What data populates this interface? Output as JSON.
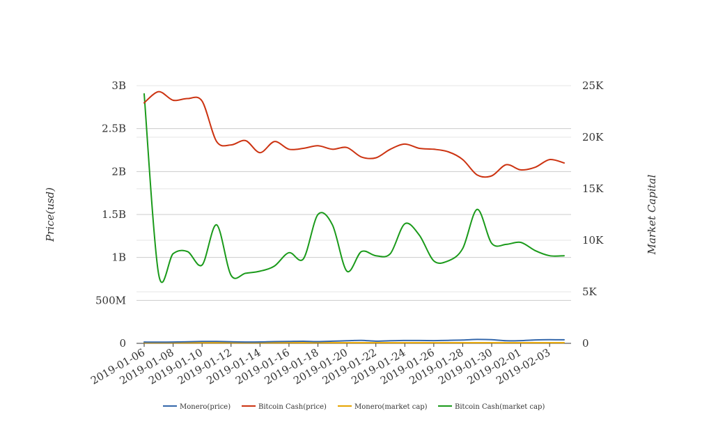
{
  "chart_data": {
    "type": "line",
    "title": "",
    "xlabel": "",
    "ylabel": "Price(usd)",
    "y2label": "Market Capital",
    "x_tick_labels": [
      "2019-01-06",
      "2019-01-08",
      "2019-01-10",
      "2019-01-12",
      "2019-01-14",
      "2019-01-16",
      "2019-01-18",
      "2019-01-20",
      "2019-01-22",
      "2019-01-24",
      "2019-01-26",
      "2019-01-28",
      "2019-01-30",
      "2019-02-01",
      "2019-02-03"
    ],
    "y_tick_labels": [
      "0",
      "500M",
      "1B",
      "1.5B",
      "2B",
      "2.5B",
      "3B"
    ],
    "y_tick_values": [
      0,
      500000000,
      1000000000,
      1500000000,
      2000000000,
      2500000000,
      3000000000
    ],
    "y2_tick_labels": [
      "0",
      "5K",
      "10K",
      "15K",
      "20K",
      "25K"
    ],
    "y2_tick_values": [
      0,
      5000,
      10000,
      15000,
      20000,
      25000
    ],
    "ylim": [
      0,
      3000000000
    ],
    "y2lim": [
      0,
      25000
    ],
    "grid": true,
    "legend_position": "bottom",
    "x": [
      "2019-01-06",
      "2019-01-07",
      "2019-01-08",
      "2019-01-09",
      "2019-01-10",
      "2019-01-11",
      "2019-01-12",
      "2019-01-13",
      "2019-01-14",
      "2019-01-15",
      "2019-01-16",
      "2019-01-17",
      "2019-01-18",
      "2019-01-19",
      "2019-01-20",
      "2019-01-21",
      "2019-01-22",
      "2019-01-23",
      "2019-01-24",
      "2019-01-25",
      "2019-01-26",
      "2019-01-27",
      "2019-01-28",
      "2019-01-29",
      "2019-01-30",
      "2019-01-31",
      "2019-02-01",
      "2019-02-02",
      "2019-02-03",
      "2019-02-04"
    ],
    "series": [
      {
        "name": "Monero(price)",
        "axis": "left",
        "color": "#3366aa",
        "values": [
          15000000,
          14000000,
          15000000,
          18000000,
          22000000,
          22000000,
          18000000,
          15000000,
          16000000,
          20000000,
          22000000,
          24000000,
          20000000,
          25000000,
          30000000,
          35000000,
          25000000,
          30000000,
          33000000,
          33000000,
          32000000,
          35000000,
          38000000,
          45000000,
          42000000,
          30000000,
          32000000,
          40000000,
          42000000,
          41000000
        ]
      },
      {
        "name": "Bitcoin Cash(price)",
        "axis": "left",
        "color": "#cc3311",
        "values": [
          2800000000,
          2930000000,
          2830000000,
          2850000000,
          2820000000,
          2350000000,
          2310000000,
          2360000000,
          2220000000,
          2350000000,
          2260000000,
          2270000000,
          2300000000,
          2260000000,
          2280000000,
          2170000000,
          2160000000,
          2260000000,
          2320000000,
          2270000000,
          2260000000,
          2230000000,
          2140000000,
          1960000000,
          1950000000,
          2080000000,
          2020000000,
          2050000000,
          2140000000,
          2100000000
        ]
      },
      {
        "name": "Monero(market cap)",
        "axis": "right",
        "color": "#e6a400",
        "values": [
          60,
          60,
          60,
          60,
          60,
          60,
          60,
          60,
          60,
          60,
          60,
          60,
          60,
          60,
          60,
          60,
          60,
          60,
          60,
          60,
          60,
          60,
          60,
          60,
          60,
          60,
          60,
          60,
          60,
          60
        ]
      },
      {
        "name": "Bitcoin Cash(market cap)",
        "axis": "right",
        "color": "#1a9a1a",
        "values": [
          24200,
          6700,
          8700,
          8900,
          7600,
          11500,
          6600,
          6800,
          7000,
          7500,
          8800,
          8200,
          12500,
          11500,
          7000,
          8900,
          8500,
          8700,
          11600,
          10500,
          8000,
          8000,
          9200,
          13000,
          9700,
          9600,
          9800,
          9000,
          8500,
          8500
        ]
      }
    ]
  }
}
